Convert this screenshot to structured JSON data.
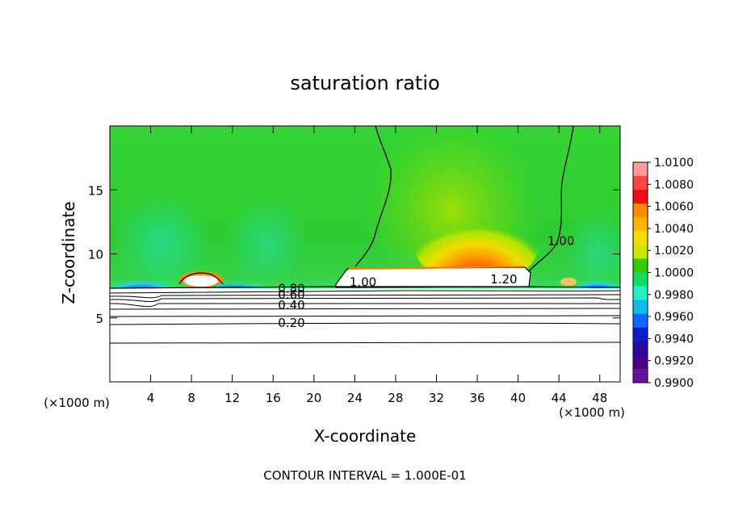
{
  "chart_data": {
    "type": "heatmap",
    "title": "saturation ratio",
    "xlabel": "X-coordinate",
    "ylabel": "Z-coordinate",
    "x_unit_left": "(×1000 m)",
    "x_unit_right": "(×1000 m)",
    "xlim": [
      0,
      50
    ],
    "ylim": [
      0,
      20
    ],
    "x_ticks": [
      4,
      8,
      12,
      16,
      20,
      24,
      28,
      32,
      36,
      40,
      44,
      48
    ],
    "y_ticks": [
      5,
      10,
      15
    ],
    "footer": "CONTOUR INTERVAL = 1.000E-01",
    "colorbar": {
      "min": 0.99,
      "max": 1.01,
      "labels": [
        "1.0100",
        "1.0080",
        "1.0060",
        "1.0040",
        "1.0020",
        "1.0000",
        "0.9980",
        "0.9960",
        "0.9940",
        "0.9920",
        "0.9900"
      ],
      "colors": [
        "#ff9a9a",
        "#ff4545",
        "#ee1010",
        "#ff8c00",
        "#ffb400",
        "#f5dc00",
        "#c8e600",
        "#33cc00",
        "#11dd66",
        "#22eecc",
        "#11bbee",
        "#1166ff",
        "#0a1ecc",
        "#2a0aa0",
        "#4a0088",
        "#6a10a0"
      ]
    },
    "contour_labels": [
      {
        "text": "0.80",
        "x": 17.8,
        "y": 7.3
      },
      {
        "text": "0.60",
        "x": 17.8,
        "y": 6.8
      },
      {
        "text": "0.40",
        "x": 17.8,
        "y": 6.0
      },
      {
        "text": "0.20",
        "x": 17.8,
        "y": 4.6
      },
      {
        "text": "1.00",
        "x": 24.8,
        "y": 7.8
      },
      {
        "text": "1.20",
        "x": 38.6,
        "y": 8.0
      },
      {
        "text": "1.00",
        "x": 44.2,
        "y": 11.0
      }
    ]
  }
}
